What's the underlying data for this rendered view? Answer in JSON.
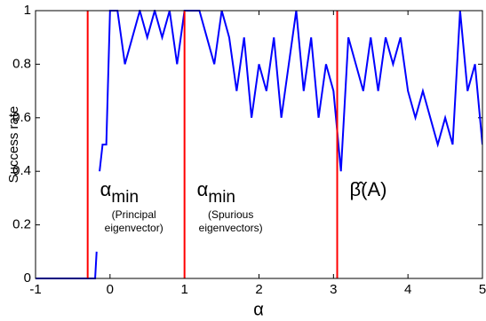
{
  "chart_data": {
    "type": "line",
    "xlabel": "α",
    "ylabel": "Success rate",
    "x": [
      -1,
      -0.2,
      -0.18,
      -0.16,
      -0.14,
      -0.1,
      -0.05,
      0,
      0.1,
      0.2,
      0.3,
      0.4,
      0.5,
      0.6,
      0.7,
      0.8,
      0.9,
      1.0,
      1.1,
      1.2,
      1.3,
      1.4,
      1.5,
      1.6,
      1.7,
      1.8,
      1.9,
      2.0,
      2.1,
      2.2,
      2.3,
      2.4,
      2.5,
      2.6,
      2.7,
      2.8,
      2.9,
      3.0,
      3.1,
      3.2,
      3.3,
      3.4,
      3.5,
      3.6,
      3.7,
      3.8,
      3.9,
      4.0,
      4.1,
      4.2,
      4.3,
      4.4,
      4.5,
      4.6,
      4.7,
      4.8,
      4.9,
      5.0
    ],
    "series": [
      {
        "color": "#0000ff",
        "values": [
          0,
          0,
          0.1,
          null,
          0.4,
          0.5,
          0.5,
          1,
          1,
          0.8,
          0.9,
          1,
          0.9,
          1,
          0.9,
          1,
          0.8,
          1,
          1,
          1,
          0.9,
          0.8,
          1,
          0.9,
          0.7,
          0.9,
          0.6,
          0.8,
          0.7,
          0.9,
          0.6,
          0.8,
          1,
          0.7,
          0.9,
          0.6,
          0.8,
          0.7,
          0.4,
          0.9,
          0.8,
          0.7,
          0.9,
          0.7,
          0.9,
          0.8,
          0.9,
          0.7,
          0.6,
          0.7,
          0.6,
          0.5,
          0.6,
          0.5,
          1,
          0.7,
          0.8,
          0.5
        ]
      }
    ],
    "vlines": {
      "color": "#ff0000",
      "values": [
        -0.3,
        1,
        3.05
      ]
    },
    "annotations": [
      {
        "symbol": "α",
        "subscript": "min",
        "caption": [
          "(Principal",
          "eigenvector)"
        ]
      },
      {
        "symbol": "α",
        "subscript": "min",
        "caption": [
          "(Spurious",
          "eigenvectors)"
        ]
      },
      {
        "symbol": "β̂(A)"
      }
    ],
    "xlim": [
      -1,
      5
    ],
    "xticks": [
      -1,
      0,
      1,
      2,
      3,
      4,
      5
    ],
    "ylim": [
      0,
      1
    ],
    "yticks": [
      0,
      0.2,
      0.4,
      0.6,
      0.8,
      1
    ]
  }
}
